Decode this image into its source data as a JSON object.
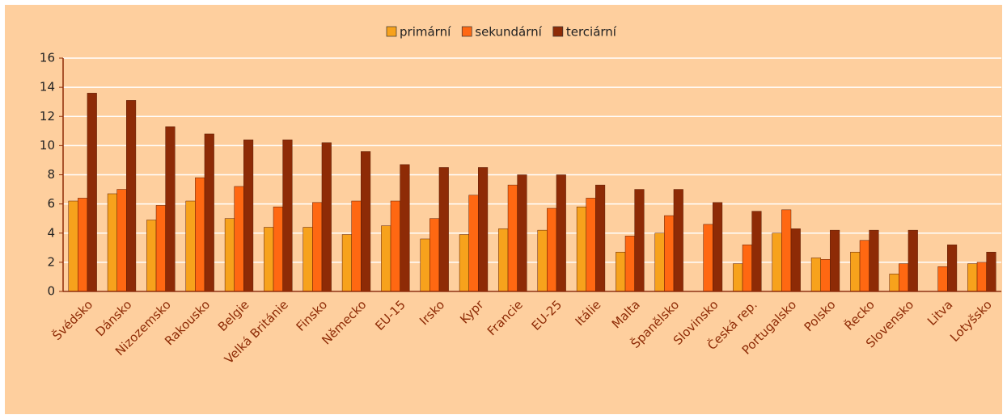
{
  "chart_data": {
    "type": "bar",
    "categories": [
      "Švédsko",
      "Dánsko",
      "Nizozemsko",
      "Rakousko",
      "Belgie",
      "Velká Británie",
      "Finsko",
      "Německo",
      "EU-15",
      "Irsko",
      "Kypr",
      "Francie",
      "EU-25",
      "Itálie",
      "Malta",
      "Španělsko",
      "Slovinsko",
      "Česká rep.",
      "Portugalsko",
      "Polsko",
      "Řecko",
      "Slovensko",
      "Litva",
      "Lotyšsko"
    ],
    "series": [
      {
        "name": "primární",
        "color": "#f7a21c",
        "values": [
          6.2,
          6.7,
          4.9,
          6.2,
          5.0,
          4.4,
          4.4,
          3.9,
          4.5,
          3.6,
          3.9,
          4.3,
          4.2,
          5.8,
          2.7,
          4.0,
          null,
          1.9,
          4.0,
          2.3,
          2.7,
          1.2,
          null,
          1.9
        ]
      },
      {
        "name": "sekundární",
        "color": "#ff6812",
        "values": [
          6.4,
          7.0,
          5.9,
          7.8,
          7.2,
          5.8,
          6.1,
          6.2,
          6.2,
          5.0,
          6.6,
          7.3,
          5.7,
          6.4,
          3.8,
          5.2,
          4.6,
          3.2,
          5.6,
          2.2,
          3.5,
          1.9,
          1.7,
          2.0
        ]
      },
      {
        "name": "terciární",
        "color": "#8e2b06",
        "values": [
          13.6,
          13.1,
          11.3,
          10.8,
          10.4,
          10.4,
          10.2,
          9.6,
          8.7,
          8.5,
          8.5,
          8.0,
          8.0,
          7.3,
          7.0,
          7.0,
          6.1,
          5.5,
          4.3,
          4.2,
          4.2,
          4.2,
          3.2,
          2.7
        ]
      }
    ],
    "ylim": [
      0,
      16
    ],
    "yticks": [
      0,
      2,
      4,
      6,
      8,
      10,
      12,
      14,
      16
    ],
    "grid": true,
    "legend": "top"
  }
}
